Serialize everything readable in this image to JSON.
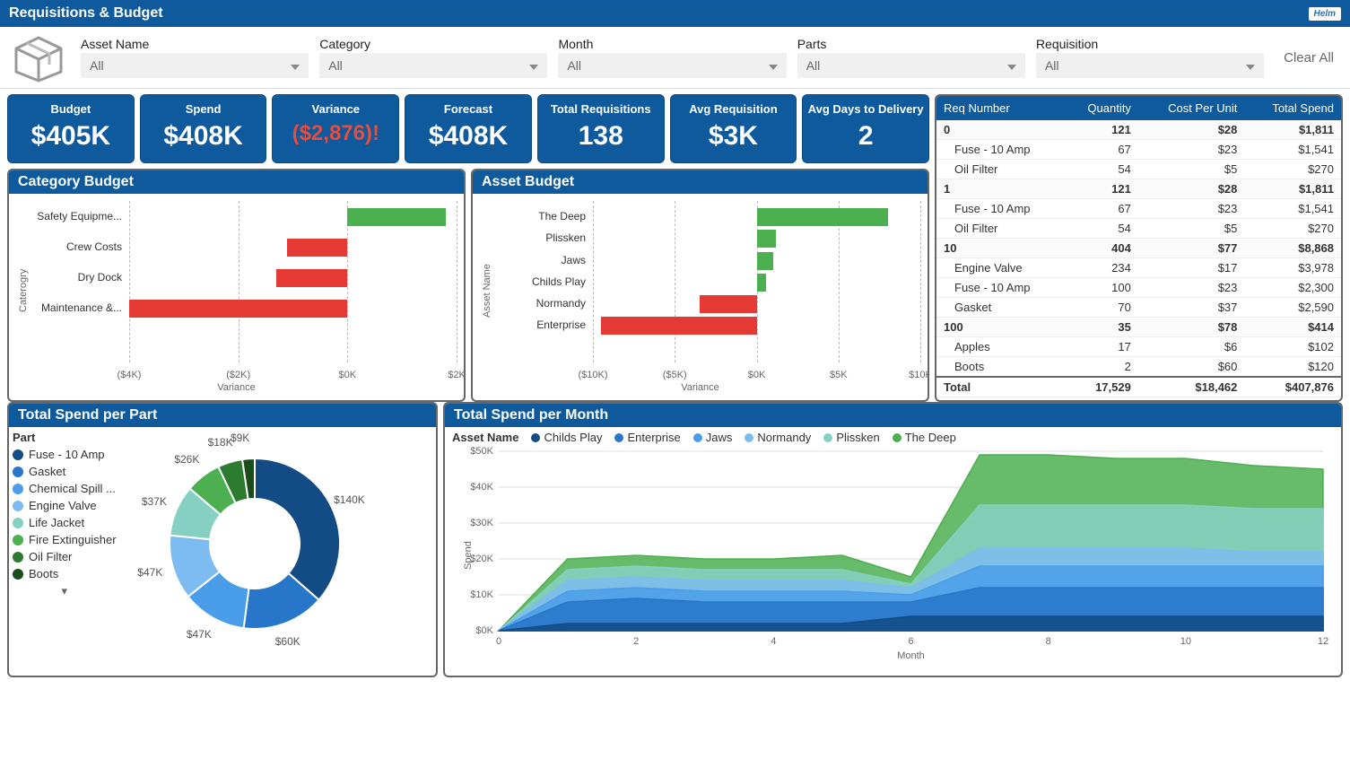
{
  "header": {
    "title": "Requisitions & Budget",
    "logo": "Helm"
  },
  "filters": {
    "items": [
      {
        "label": "Asset Name",
        "value": "All"
      },
      {
        "label": "Category",
        "value": "All"
      },
      {
        "label": "Month",
        "value": "All"
      },
      {
        "label": "Parts",
        "value": "All"
      },
      {
        "label": "Requisition",
        "value": "All"
      }
    ],
    "clear": "Clear All"
  },
  "kpis": [
    {
      "title": "Budget",
      "value": "$405K"
    },
    {
      "title": "Spend",
      "value": "$408K"
    },
    {
      "title": "Variance",
      "value": "($2,876)!",
      "negative": true
    },
    {
      "title": "Forecast",
      "value": "$408K"
    },
    {
      "title": "Total Requisitions",
      "value": "138"
    },
    {
      "title": "Avg Requisition",
      "value": "$3K"
    },
    {
      "title": "Avg Days to Delivery",
      "value": "2"
    }
  ],
  "category_budget": {
    "title": "Category Budget",
    "y_label": "Caterogry",
    "x_label": "Variance",
    "x_min": -4,
    "x_max": 2,
    "ticks": [
      {
        "v": -4,
        "l": "($4K)"
      },
      {
        "v": -2,
        "l": "($2K)"
      },
      {
        "v": 0,
        "l": "$0K"
      },
      {
        "v": 2,
        "l": "$2K"
      }
    ],
    "bars": [
      {
        "label": "Safety Equipme...",
        "value": 1.8,
        "color": "#4caf50"
      },
      {
        "label": "Crew Costs",
        "value": -1.1,
        "color": "#e53935"
      },
      {
        "label": "Dry Dock",
        "value": -1.3,
        "color": "#e53935"
      },
      {
        "label": "Maintenance &...",
        "value": -4.0,
        "color": "#e53935"
      }
    ]
  },
  "asset_budget": {
    "title": "Asset Budget",
    "y_label": "Asset Name",
    "x_label": "Variance",
    "x_min": -10,
    "x_max": 10,
    "ticks": [
      {
        "v": -10,
        "l": "($10K)"
      },
      {
        "v": -5,
        "l": "($5K)"
      },
      {
        "v": 0,
        "l": "$0K"
      },
      {
        "v": 5,
        "l": "$5K"
      },
      {
        "v": 10,
        "l": "$10K"
      }
    ],
    "bars": [
      {
        "label": "The Deep",
        "value": 8.0,
        "color": "#4caf50"
      },
      {
        "label": "Plissken",
        "value": 1.2,
        "color": "#4caf50"
      },
      {
        "label": "Jaws",
        "value": 1.0,
        "color": "#4caf50"
      },
      {
        "label": "Childs Play",
        "value": 0.6,
        "color": "#4caf50"
      },
      {
        "label": "Normandy",
        "value": -3.5,
        "color": "#e53935"
      },
      {
        "label": "Enterprise",
        "value": -9.5,
        "color": "#e53935"
      }
    ]
  },
  "req_table": {
    "columns": [
      "Req Number",
      "Quantity",
      "Cost Per Unit",
      "Total Spend"
    ],
    "rows": [
      {
        "type": "group",
        "cells": [
          "0",
          "121",
          "$28",
          "$1,811"
        ]
      },
      {
        "type": "child",
        "cells": [
          "Fuse - 10 Amp",
          "67",
          "$23",
          "$1,541"
        ]
      },
      {
        "type": "child",
        "cells": [
          "Oil Filter",
          "54",
          "$5",
          "$270"
        ]
      },
      {
        "type": "group",
        "cells": [
          "1",
          "121",
          "$28",
          "$1,811"
        ]
      },
      {
        "type": "child",
        "cells": [
          "Fuse - 10 Amp",
          "67",
          "$23",
          "$1,541"
        ]
      },
      {
        "type": "child",
        "cells": [
          "Oil Filter",
          "54",
          "$5",
          "$270"
        ]
      },
      {
        "type": "group",
        "cells": [
          "10",
          "404",
          "$77",
          "$8,868"
        ]
      },
      {
        "type": "child",
        "cells": [
          "Engine Valve",
          "234",
          "$17",
          "$3,978"
        ]
      },
      {
        "type": "child",
        "cells": [
          "Fuse - 10 Amp",
          "100",
          "$23",
          "$2,300"
        ]
      },
      {
        "type": "child",
        "cells": [
          "Gasket",
          "70",
          "$37",
          "$2,590"
        ]
      },
      {
        "type": "group",
        "cells": [
          "100",
          "35",
          "$78",
          "$414"
        ]
      },
      {
        "type": "child",
        "cells": [
          "Apples",
          "17",
          "$6",
          "$102"
        ]
      },
      {
        "type": "child",
        "cells": [
          "Boots",
          "2",
          "$60",
          "$120"
        ]
      },
      {
        "type": "total",
        "cells": [
          "Total",
          "17,529",
          "$18,462",
          "$407,876"
        ]
      }
    ]
  },
  "spend_per_part": {
    "title": "Total Spend per Part",
    "legend_title": "Part",
    "items": [
      {
        "label": "Fuse - 10 Amp",
        "value": 140,
        "display": "$140K",
        "color": "#134b85"
      },
      {
        "label": "Gasket",
        "value": 60,
        "display": "$60K",
        "color": "#2876c9"
      },
      {
        "label": "Chemical Spill ...",
        "value": 47,
        "display": "$47K",
        "color": "#4a9de8"
      },
      {
        "label": "Engine Valve",
        "value": 47,
        "display": "$47K",
        "color": "#7dbcf0"
      },
      {
        "label": "Life Jacket",
        "value": 37,
        "display": "$37K",
        "color": "#86d0c3"
      },
      {
        "label": "Fire Extinguisher",
        "value": 26,
        "display": "$26K",
        "color": "#4caf50"
      },
      {
        "label": "Oil Filter",
        "value": 18,
        "display": "$18K",
        "color": "#2d7a31"
      },
      {
        "label": "Boots",
        "value": 9,
        "display": "$9K",
        "color": "#1a4d1c"
      }
    ]
  },
  "spend_per_month": {
    "title": "Total Spend per Month",
    "legend_title": "Asset Name",
    "x_label": "Month",
    "y_label": "Spend",
    "y_max": 50,
    "y_ticks": [
      "$0K",
      "$10K",
      "$20K",
      "$30K",
      "$40K",
      "$50K"
    ],
    "x_ticks": [
      0,
      2,
      4,
      6,
      8,
      10,
      12
    ],
    "series": [
      {
        "label": "Childs Play",
        "color": "#134b85",
        "data": [
          0,
          2,
          2,
          2,
          2,
          2,
          4,
          4,
          4,
          4,
          4,
          4,
          4
        ]
      },
      {
        "label": "Enterprise",
        "color": "#2876c9",
        "data": [
          0,
          8,
          9,
          8,
          8,
          8,
          8,
          12,
          12,
          12,
          12,
          12,
          12
        ]
      },
      {
        "label": "Jaws",
        "color": "#4a9de8",
        "data": [
          0,
          11,
          12,
          11,
          11,
          11,
          10,
          18,
          18,
          18,
          18,
          18,
          18
        ]
      },
      {
        "label": "Normandy",
        "color": "#7dbcf0",
        "data": [
          0,
          14,
          15,
          14,
          14,
          14,
          12,
          23,
          23,
          23,
          23,
          22,
          22
        ]
      },
      {
        "label": "Plissken",
        "color": "#86d0c3",
        "data": [
          0,
          17,
          18,
          17,
          17,
          17,
          13,
          35,
          35,
          35,
          35,
          34,
          34
        ]
      },
      {
        "label": "The Deep",
        "color": "#4caf50",
        "data": [
          0,
          20,
          21,
          20,
          20,
          21,
          15,
          49,
          49,
          48,
          48,
          46,
          45
        ]
      }
    ]
  },
  "colors": {
    "primary": "#0e5a9c",
    "negative": "#e53935",
    "positive": "#4caf50",
    "grid": "#bbbbbb",
    "panel_border": "#666666"
  }
}
